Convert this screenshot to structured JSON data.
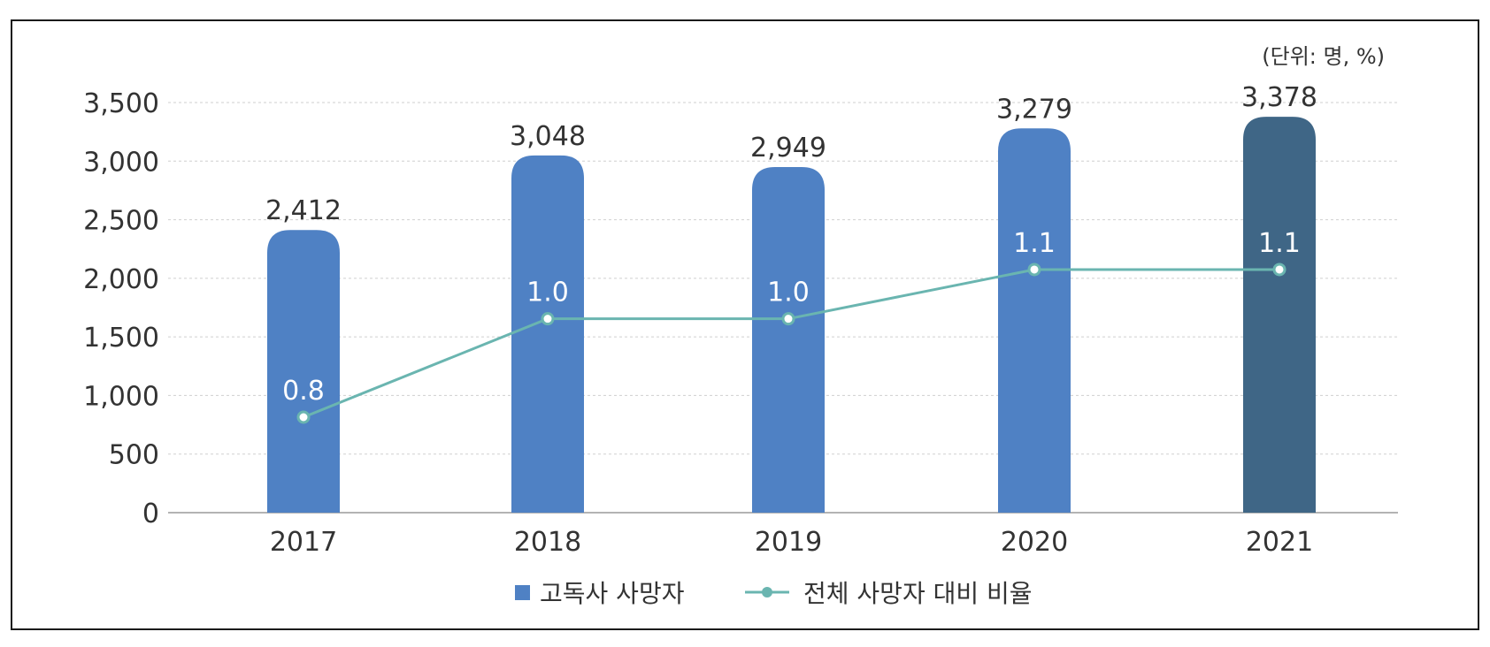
{
  "chart_data": {
    "type": "bar",
    "unit_note": "(단위: 명, %)",
    "categories": [
      "2017",
      "2018",
      "2019",
      "2020",
      "2021"
    ],
    "series": [
      {
        "name": "고독사 사망자",
        "kind": "bar",
        "axis": "left",
        "values": [
          2412,
          3048,
          2949,
          3279,
          3378
        ],
        "labels": [
          "2,412",
          "3,048",
          "2,949",
          "3,279",
          "3,378"
        ],
        "color": "#4f81c4",
        "highlight_color": "#3f6686"
      },
      {
        "name": "전체 사망자 대비 비율",
        "kind": "line",
        "axis": "secondary (hidden)",
        "values": [
          0.8,
          1.0,
          1.0,
          1.1,
          1.1
        ],
        "labels": [
          "0.8",
          "1.0",
          "1.0",
          "1.1",
          "1.1"
        ],
        "color": "#6ab5b0"
      }
    ],
    "y_ticks": [
      "0",
      "500",
      "1,000",
      "1,500",
      "2,000",
      "2,500",
      "3,000",
      "3,500"
    ],
    "ylim": [
      0,
      3500
    ],
    "legend_position": "bottom-center",
    "grid": true
  }
}
